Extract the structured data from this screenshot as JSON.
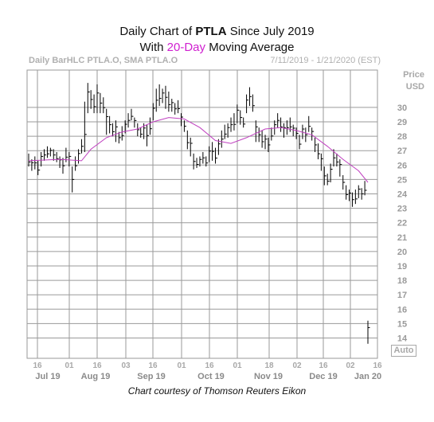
{
  "header": {
    "title_prefix": "Daily Chart of ",
    "ticker": "PTLA",
    "title_suffix": " Since July 2019",
    "subtitle_prefix": "With ",
    "sma_label": "20-Day",
    "subtitle_suffix": " Moving Average",
    "series_label": "Daily BarHLC PTLA.O, SMA PTLA.O",
    "date_range": "7/11/2019 - 1/21/2020 (EST)"
  },
  "axis": {
    "price_label": "Price",
    "currency_label": "USD",
    "auto_label": "Auto"
  },
  "footer": {
    "credit": "Chart courtesy of Thomson Reuters Eikon"
  },
  "colors": {
    "bars": "#000000",
    "sma": "#c040c0",
    "grid": "#9a9a9a"
  },
  "chart_data": {
    "type": "line",
    "title": "Daily Chart of PTLA Since July 2019",
    "subtitle": "With 20-Day Moving Average",
    "ylim": [
      13.5,
      34
    ],
    "yticks": [
      14,
      15,
      16,
      17,
      18,
      19,
      20,
      21,
      22,
      23,
      24,
      25,
      26,
      27,
      28,
      29,
      30
    ],
    "day_ticks": [
      "16",
      "01",
      "16",
      "03",
      "16",
      "01",
      "16",
      "01",
      "18",
      "02",
      "16",
      "02",
      "16"
    ],
    "month_labels": [
      "Jul 19",
      "Aug 19",
      "Sep 19",
      "Oct 19",
      "Nov 19",
      "Dec 19",
      "Jan 20"
    ],
    "grid": true,
    "series": [
      {
        "kind": "ohlc",
        "bars": [
          [
            26.8,
            25.9
          ],
          [
            26.4,
            25.6
          ],
          [
            26.6,
            25.7
          ],
          [
            26.3,
            25.3
          ],
          [
            26.9,
            25.9
          ],
          [
            27.1,
            26.3
          ],
          [
            27.3,
            26.5
          ],
          [
            27.2,
            26.6
          ],
          [
            27.1,
            26.3
          ],
          [
            26.9,
            26.2
          ],
          [
            26.6,
            25.8
          ],
          [
            26.5,
            25.4
          ],
          [
            27.2,
            26.2
          ],
          [
            26.9,
            25.9
          ],
          [
            25.9,
            24.1
          ],
          [
            26.6,
            25.6
          ],
          [
            27.1,
            26.1
          ],
          [
            27.8,
            26.8
          ],
          [
            30.4,
            26.9
          ],
          [
            31.7,
            29.6
          ],
          [
            31.2,
            29.9
          ],
          [
            30.9,
            29.6
          ],
          [
            31.6,
            29.6
          ],
          [
            31.0,
            29.6
          ],
          [
            30.7,
            29.6
          ],
          [
            29.9,
            28.1
          ],
          [
            29.4,
            28.2
          ],
          [
            28.9,
            28.0
          ],
          [
            29.1,
            27.6
          ],
          [
            28.3,
            27.5
          ],
          [
            28.7,
            27.7
          ],
          [
            29.1,
            28.2
          ],
          [
            29.6,
            28.6
          ],
          [
            29.9,
            29.1
          ],
          [
            29.3,
            28.6
          ],
          [
            28.9,
            28.0
          ],
          [
            28.6,
            27.9
          ],
          [
            28.9,
            27.8
          ],
          [
            28.8,
            27.3
          ],
          [
            29.3,
            28.1
          ],
          [
            30.3,
            29.1
          ],
          [
            31.3,
            29.7
          ],
          [
            31.6,
            30.1
          ],
          [
            31.3,
            30.3
          ],
          [
            31.5,
            29.9
          ],
          [
            31.1,
            29.7
          ],
          [
            30.6,
            29.7
          ],
          [
            30.3,
            29.5
          ],
          [
            30.5,
            29.6
          ],
          [
            29.6,
            28.7
          ],
          [
            29.1,
            28.3
          ],
          [
            28.4,
            27.1
          ],
          [
            27.9,
            26.6
          ],
          [
            26.8,
            25.7
          ],
          [
            26.5,
            25.8
          ],
          [
            26.6,
            25.9
          ],
          [
            26.9,
            26.1
          ],
          [
            26.6,
            25.9
          ],
          [
            27.3,
            26.2
          ],
          [
            27.6,
            26.3
          ],
          [
            27.2,
            26.1
          ],
          [
            27.8,
            26.7
          ],
          [
            28.4,
            27.2
          ],
          [
            28.8,
            27.8
          ],
          [
            28.9,
            27.9
          ],
          [
            29.3,
            28.3
          ],
          [
            29.6,
            28.4
          ],
          [
            30.2,
            28.9
          ],
          [
            29.8,
            28.8
          ],
          [
            29.3,
            28.6
          ],
          [
            30.9,
            29.6
          ],
          [
            31.4,
            30.1
          ],
          [
            30.9,
            29.7
          ],
          [
            29.1,
            27.6
          ],
          [
            28.6,
            27.6
          ],
          [
            28.4,
            27.2
          ],
          [
            28.1,
            27.1
          ],
          [
            27.9,
            26.9
          ],
          [
            28.6,
            27.7
          ],
          [
            29.1,
            28.1
          ],
          [
            29.6,
            28.6
          ],
          [
            29.3,
            28.3
          ],
          [
            28.9,
            27.9
          ],
          [
            29.1,
            28.1
          ],
          [
            29.3,
            28.3
          ],
          [
            28.8,
            28.0
          ],
          [
            28.6,
            27.8
          ],
          [
            28.1,
            27.1
          ],
          [
            28.8,
            27.8
          ],
          [
            28.6,
            27.6
          ],
          [
            29.4,
            28.3
          ],
          [
            28.6,
            27.7
          ],
          [
            27.9,
            26.9
          ],
          [
            27.5,
            26.4
          ],
          [
            26.8,
            25.6
          ],
          [
            25.9,
            24.6
          ],
          [
            25.4,
            24.6
          ],
          [
            26.1,
            24.8
          ],
          [
            27.1,
            25.9
          ],
          [
            26.8,
            25.9
          ],
          [
            26.4,
            25.2
          ],
          [
            25.3,
            24.3
          ],
          [
            24.6,
            23.6
          ],
          [
            24.3,
            23.5
          ],
          [
            24.1,
            23.1
          ],
          [
            24.3,
            23.3
          ],
          [
            24.6,
            23.7
          ],
          [
            24.4,
            23.6
          ],
          [
            24.9,
            23.9
          ],
          [
            15.2,
            13.6
          ]
        ]
      },
      {
        "kind": "sma",
        "name": "SMA PTLA.O",
        "values": [
          [
            0,
            26.3
          ],
          [
            10,
            26.4
          ],
          [
            17,
            26.3
          ],
          [
            20,
            27.1
          ],
          [
            25,
            27.9
          ],
          [
            30,
            28.3
          ],
          [
            35,
            28.5
          ],
          [
            40,
            29.0
          ],
          [
            45,
            29.3
          ],
          [
            50,
            29.2
          ],
          [
            55,
            28.6
          ],
          [
            60,
            27.7
          ],
          [
            65,
            27.5
          ],
          [
            70,
            27.9
          ],
          [
            76,
            28.5
          ],
          [
            81,
            28.6
          ],
          [
            86,
            28.4
          ],
          [
            91,
            28.1
          ],
          [
            96,
            27.3
          ],
          [
            101,
            26.4
          ],
          [
            106,
            25.6
          ],
          [
            109,
            24.8
          ]
        ]
      }
    ]
  }
}
